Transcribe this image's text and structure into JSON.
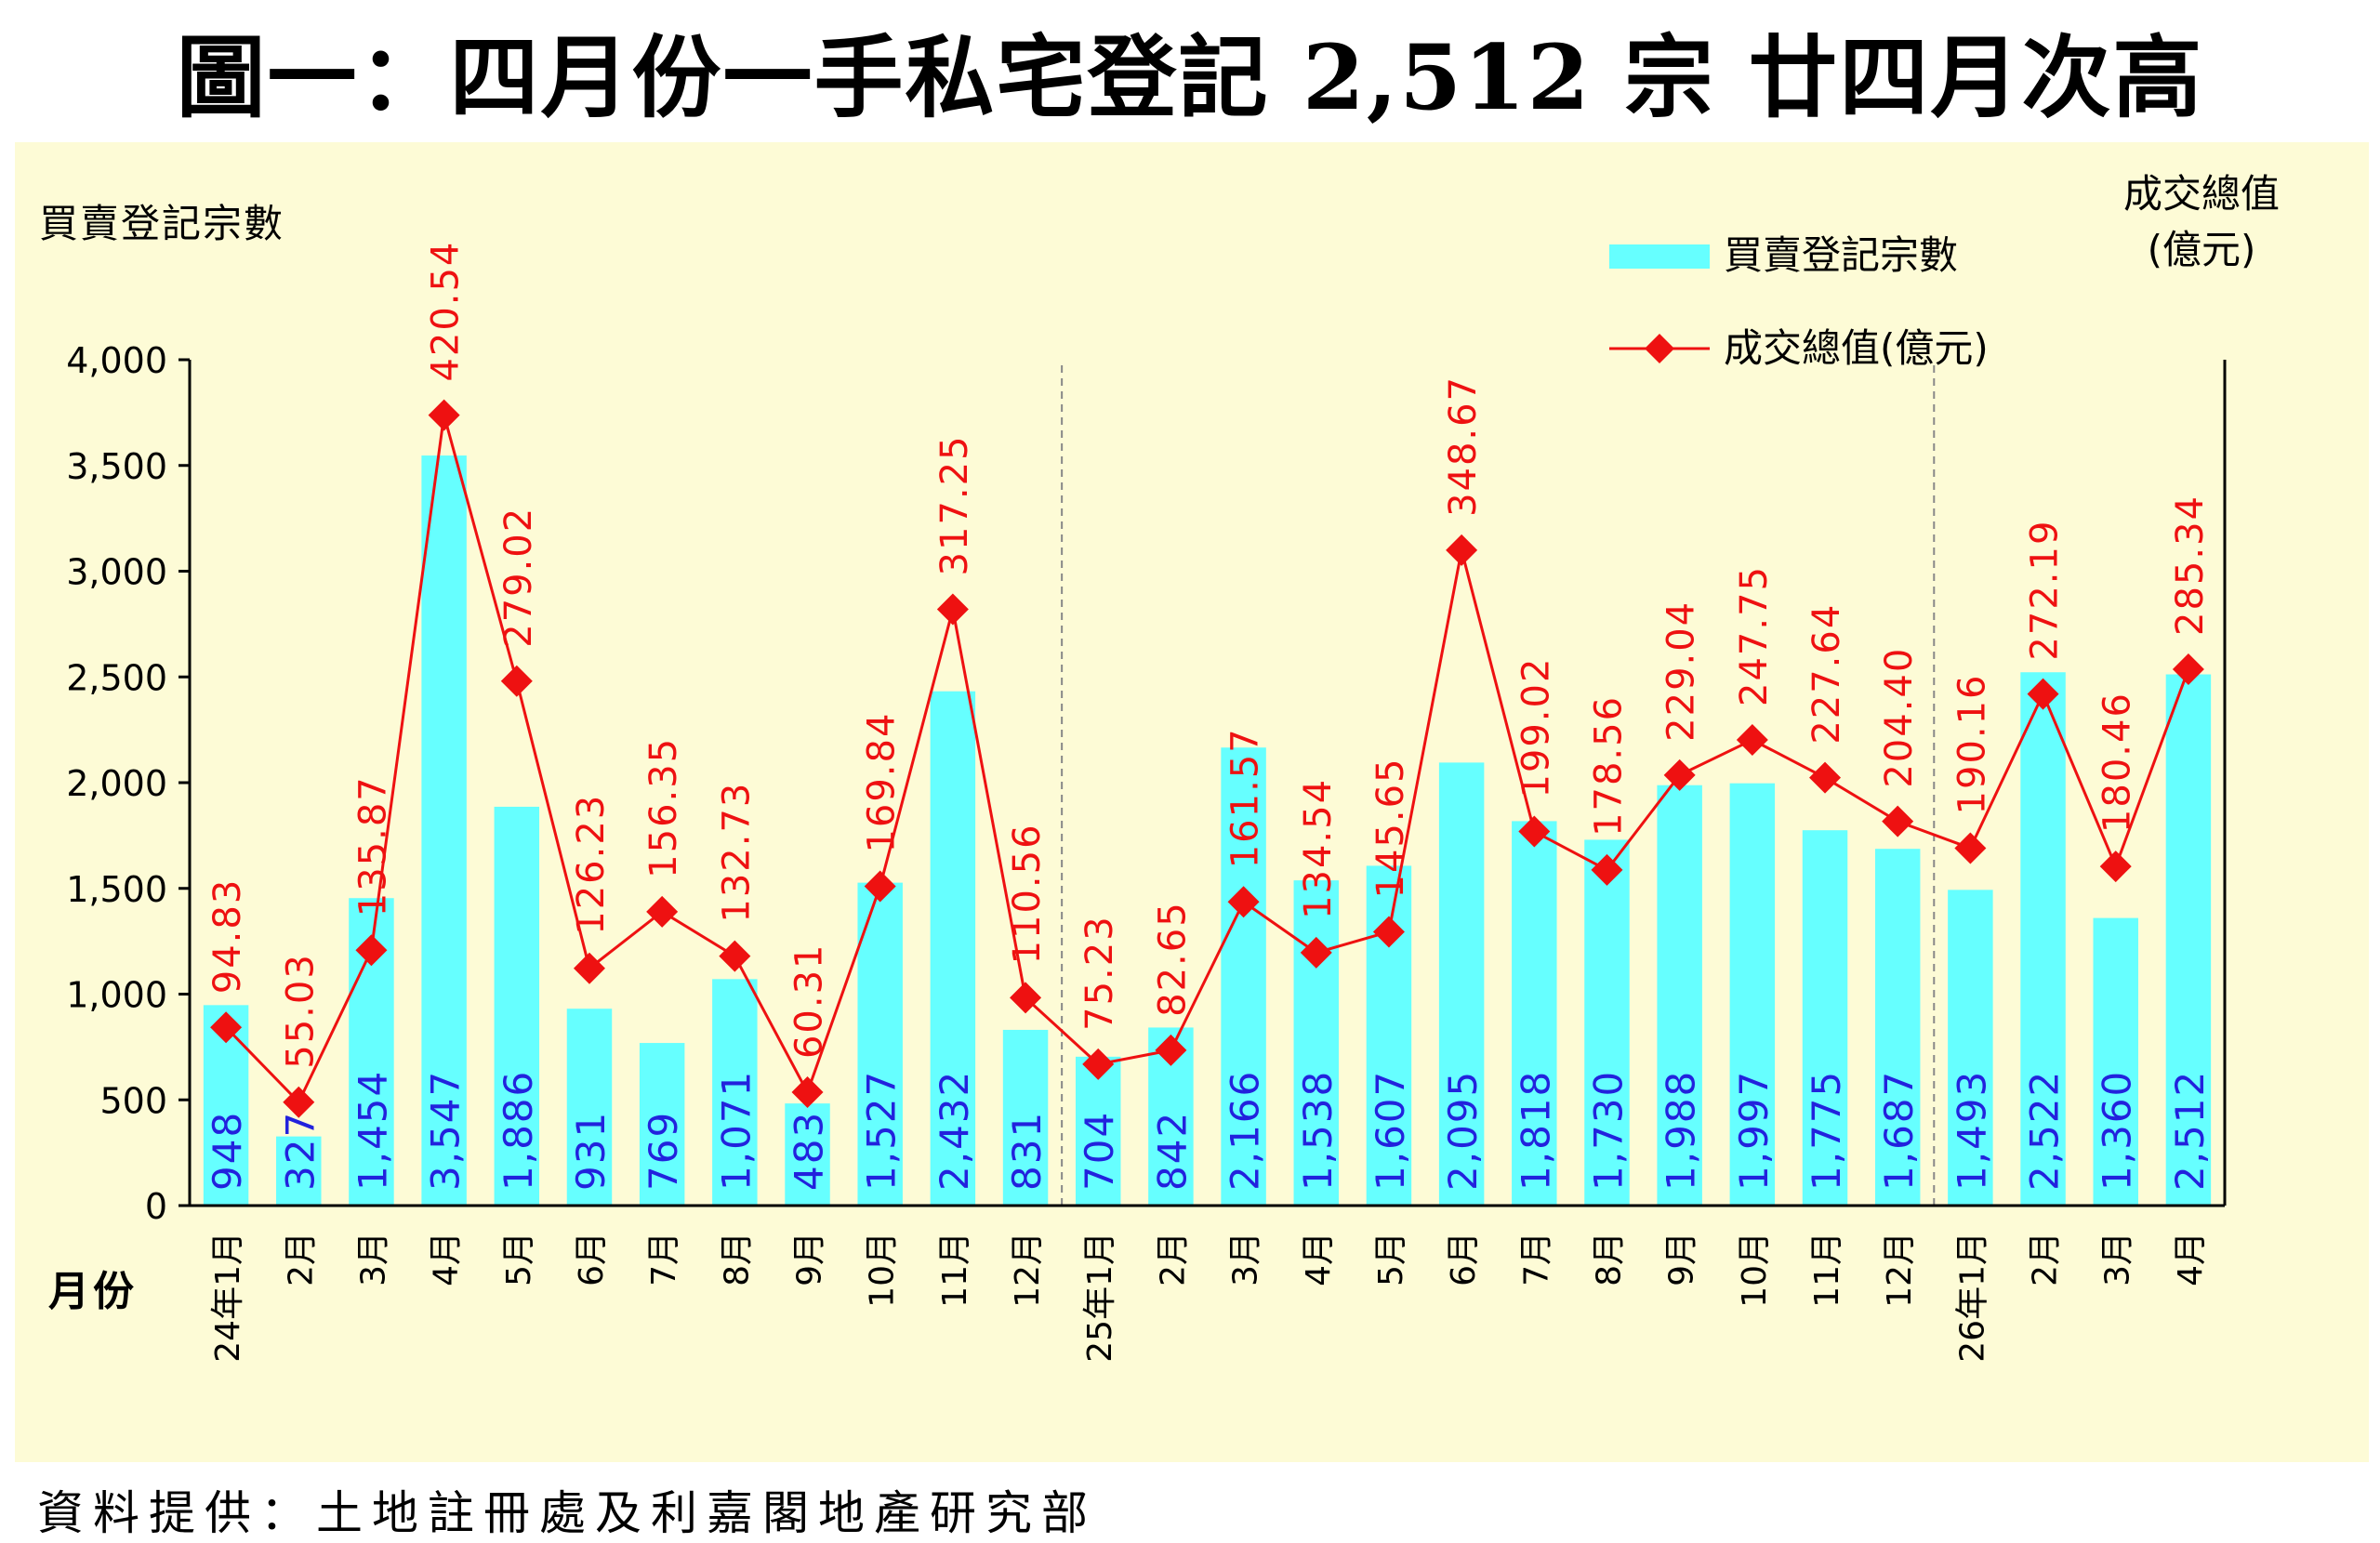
{
  "title": "圖一：四月份一手私宅登記 2,512 宗  廿四月次高",
  "source": "資料提供：土地註冊處及利嘉閣地產研究部",
  "colors": {
    "bar": "#66ffff",
    "line": "#ee1111",
    "bar_label": "#2222dd",
    "line_label": "#ee1111",
    "background": "#fdfbd6"
  },
  "chart_data": {
    "type": "bar",
    "xlabel": "月份",
    "ylabel": "買賣登記宗數",
    "y2label": "成交總值\n(億元)",
    "ylim": [
      0,
      4000
    ],
    "yticks": [
      "0",
      "500",
      "1,000",
      "1,500",
      "2,000",
      "2,500",
      "3,000",
      "3,500",
      "4,000"
    ],
    "grid": false,
    "legend_position": "top-right",
    "categories": [
      "24年1月",
      "2月",
      "3月",
      "4月",
      "5月",
      "6月",
      "7月",
      "8月",
      "9月",
      "10月",
      "11月",
      "12月",
      "25年1月",
      "2月",
      "3月",
      "4月",
      "5月",
      "6月",
      "7月",
      "8月",
      "9月",
      "10月",
      "11月",
      "12月",
      "26年1月",
      "2月",
      "3月",
      "4月"
    ],
    "series": [
      {
        "name": "買賣登記宗數",
        "type": "bar",
        "values": [
          948,
          327,
          1454,
          3547,
          1886,
          931,
          769,
          1071,
          483,
          1527,
          2432,
          831,
          704,
          842,
          2166,
          1538,
          1607,
          2095,
          1818,
          1730,
          1988,
          1997,
          1775,
          1687,
          1493,
          2522,
          1360,
          2512
        ],
        "labels": [
          "948",
          "327",
          "1,454",
          "3,547",
          "1,886",
          "931",
          "769",
          "1,071",
          "483",
          "1,527",
          "2,432",
          "831",
          "704",
          "842",
          "2,166",
          "1,538",
          "1,607",
          "2,095",
          "1,818",
          "1,730",
          "1,988",
          "1,997",
          "1,775",
          "1,687",
          "1,493",
          "2,522",
          "1,360",
          "2,512"
        ]
      },
      {
        "name": "成交總值(億元)",
        "type": "line",
        "values": [
          94.83,
          55.03,
          135.87,
          420.54,
          279.02,
          126.23,
          156.35,
          132.73,
          60.31,
          169.84,
          317.25,
          110.56,
          75.23,
          82.65,
          161.57,
          134.54,
          145.65,
          348.67,
          199.02,
          178.56,
          229.04,
          247.75,
          227.64,
          204.4,
          190.16,
          272.19,
          180.46,
          285.34
        ],
        "labels": [
          "94.83",
          "55.03",
          "135.87",
          "420.54",
          "279.02",
          "126.23",
          "156.35",
          "132.73",
          "60.31",
          "169.84",
          "317.25",
          "110.56",
          "75.23",
          "82.65",
          "161.57",
          "134.54",
          "145.65",
          "348.67",
          "199.02",
          "178.56",
          "229.04",
          "247.75",
          "227.64",
          "204.40",
          "190.16",
          "272.19",
          "180.46",
          "285.34"
        ]
      }
    ]
  }
}
